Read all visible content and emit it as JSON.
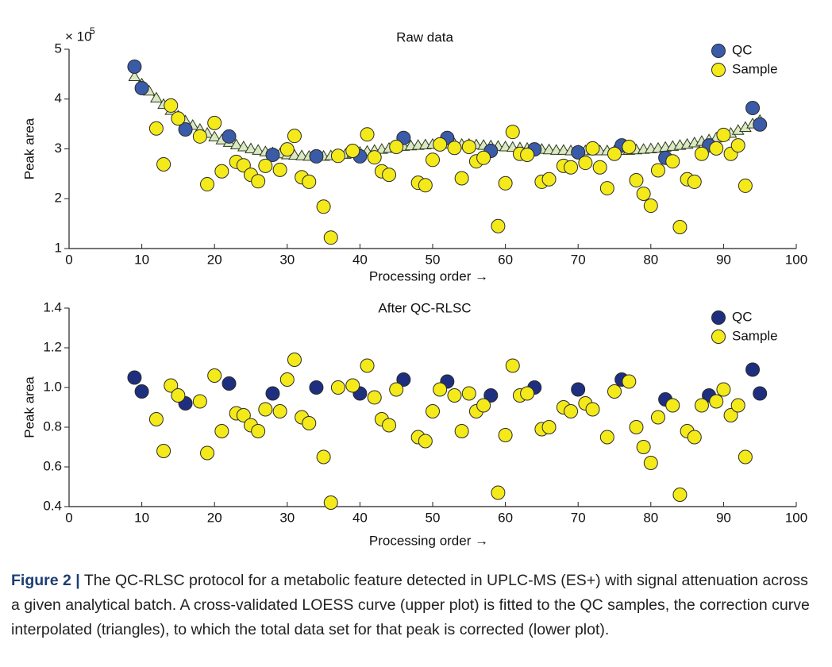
{
  "chart_data": [
    {
      "type": "scatter",
      "title": "Raw data",
      "xlabel": "Processing order →",
      "ylabel": "Peak area",
      "y_multiplier": "× 10",
      "y_multiplier_exponent": "5",
      "xlim": [
        0,
        100
      ],
      "xticks": [
        0,
        10,
        20,
        30,
        40,
        50,
        60,
        70,
        80,
        90,
        100
      ],
      "ylim": [
        1,
        5
      ],
      "yticks": [
        1,
        2,
        3,
        4,
        5
      ],
      "legend": "upper right",
      "series": [
        {
          "marker": "triangle",
          "line": true,
          "color": "#dce8c4",
          "line_color": "#3b5323",
          "x": [
            9,
            10,
            11,
            12,
            13,
            14,
            15,
            16,
            17,
            18,
            19,
            20,
            21,
            22,
            23,
            24,
            25,
            26,
            27,
            28,
            29,
            30,
            31,
            32,
            33,
            34,
            35,
            36,
            37,
            38,
            39,
            40,
            41,
            42,
            43,
            44,
            45,
            46,
            47,
            48,
            49,
            50,
            51,
            52,
            53,
            54,
            55,
            56,
            57,
            58,
            59,
            60,
            61,
            62,
            63,
            64,
            65,
            66,
            67,
            68,
            69,
            70,
            71,
            72,
            73,
            74,
            75,
            76,
            77,
            78,
            79,
            80,
            81,
            82,
            83,
            84,
            85,
            86,
            87,
            88,
            89,
            90,
            91,
            92,
            93,
            94,
            95
          ],
          "values": [
            4.45,
            4.3,
            4.16,
            4.02,
            3.89,
            3.77,
            3.66,
            3.56,
            3.47,
            3.39,
            3.31,
            3.24,
            3.18,
            3.13,
            3.08,
            3.04,
            3.0,
            2.97,
            2.94,
            2.92,
            2.9,
            2.88,
            2.87,
            2.86,
            2.85,
            2.85,
            2.85,
            2.86,
            2.87,
            2.89,
            2.91,
            2.93,
            2.95,
            2.97,
            2.99,
            3.01,
            3.03,
            3.05,
            3.06,
            3.07,
            3.08,
            3.09,
            3.09,
            3.1,
            3.1,
            3.09,
            3.09,
            3.08,
            3.07,
            3.06,
            3.05,
            3.04,
            3.03,
            3.02,
            3.01,
            3.0,
            2.99,
            2.98,
            2.97,
            2.97,
            2.96,
            2.96,
            2.96,
            2.96,
            2.96,
            2.96,
            2.96,
            2.97,
            2.97,
            2.98,
            2.99,
            3.0,
            3.01,
            3.03,
            3.05,
            3.07,
            3.09,
            3.12,
            3.15,
            3.18,
            3.22,
            3.26,
            3.31,
            3.37,
            3.43,
            3.5,
            3.57
          ]
        },
        {
          "name": "QC",
          "marker": "circle",
          "color": "#3a5ba8",
          "x": [
            9,
            10,
            16,
            22,
            28,
            34,
            40,
            46,
            52,
            58,
            64,
            70,
            76,
            82,
            88,
            94,
            95
          ],
          "values": [
            4.65,
            4.22,
            3.39,
            3.25,
            2.88,
            2.85,
            2.85,
            3.22,
            3.22,
            2.96,
            2.99,
            2.93,
            3.07,
            2.82,
            3.07,
            3.82,
            3.49
          ]
        },
        {
          "name": "Sample",
          "marker": "circle",
          "color": "#f4ea1a",
          "x": [
            12,
            13,
            14,
            15,
            18,
            19,
            20,
            21,
            23,
            24,
            25,
            26,
            27,
            29,
            30,
            31,
            32,
            33,
            35,
            36,
            37,
            39,
            41,
            42,
            43,
            44,
            45,
            48,
            49,
            50,
            51,
            53,
            54,
            55,
            56,
            57,
            59,
            60,
            61,
            62,
            63,
            65,
            66,
            68,
            69,
            71,
            72,
            73,
            74,
            75,
            77,
            78,
            79,
            80,
            81,
            83,
            84,
            85,
            86,
            87,
            89,
            90,
            91,
            92,
            93
          ],
          "values": [
            3.41,
            2.69,
            3.87,
            3.61,
            3.25,
            2.29,
            3.52,
            2.55,
            2.74,
            2.67,
            2.48,
            2.35,
            2.66,
            2.58,
            2.99,
            3.26,
            2.43,
            2.34,
            1.84,
            1.22,
            2.86,
            2.96,
            3.29,
            2.83,
            2.55,
            2.48,
            3.04,
            2.32,
            2.27,
            2.78,
            3.09,
            3.02,
            2.41,
            3.04,
            2.75,
            2.82,
            1.45,
            2.31,
            3.34,
            2.9,
            2.88,
            2.34,
            2.39,
            2.66,
            2.63,
            2.72,
            3.01,
            2.63,
            2.21,
            2.9,
            3.04,
            2.37,
            2.1,
            1.86,
            2.57,
            2.75,
            1.43,
            2.39,
            2.34,
            2.9,
            3.01,
            3.28,
            2.9,
            3.07,
            2.26
          ]
        }
      ]
    },
    {
      "type": "scatter",
      "title": "After QC-RLSC",
      "xlabel": "Processing order →",
      "ylabel": "Peak area",
      "xlim": [
        0,
        100
      ],
      "xticks": [
        0,
        10,
        20,
        30,
        40,
        50,
        60,
        70,
        80,
        90,
        100
      ],
      "ylim": [
        0.4,
        1.4
      ],
      "yticks": [
        0.4,
        0.6,
        0.8,
        {
          "value": 1,
          "label": "1.0"
        },
        1.2,
        1.4
      ],
      "legend": "upper right",
      "series": [
        {
          "name": "QC",
          "marker": "circle",
          "color": "#1f2f80",
          "x": [
            9,
            10,
            16,
            22,
            28,
            34,
            40,
            46,
            52,
            58,
            64,
            70,
            76,
            82,
            88,
            94,
            95
          ],
          "values": [
            1.05,
            0.98,
            0.92,
            1.02,
            0.97,
            1.0,
            0.97,
            1.04,
            1.03,
            0.96,
            1.0,
            0.99,
            1.04,
            0.94,
            0.96,
            1.09,
            0.97
          ]
        },
        {
          "name": "Sample",
          "marker": "circle",
          "color": "#f4ea1a",
          "x": [
            12,
            13,
            14,
            15,
            18,
            19,
            20,
            21,
            23,
            24,
            25,
            26,
            27,
            29,
            30,
            31,
            32,
            33,
            35,
            36,
            37,
            39,
            41,
            42,
            43,
            44,
            45,
            48,
            49,
            50,
            51,
            53,
            54,
            55,
            56,
            57,
            59,
            60,
            61,
            62,
            63,
            65,
            66,
            68,
            69,
            71,
            72,
            74,
            75,
            77,
            78,
            79,
            80,
            81,
            83,
            84,
            85,
            86,
            87,
            89,
            90,
            91,
            92,
            93
          ],
          "values": [
            0.84,
            0.68,
            1.01,
            0.96,
            0.93,
            0.67,
            1.06,
            0.78,
            0.87,
            0.86,
            0.81,
            0.78,
            0.89,
            0.88,
            1.04,
            1.14,
            0.85,
            0.82,
            0.65,
            0.42,
            1.0,
            1.01,
            1.11,
            0.95,
            0.84,
            0.81,
            0.99,
            0.75,
            0.73,
            0.88,
            0.99,
            0.96,
            0.78,
            0.97,
            0.88,
            0.91,
            0.47,
            0.76,
            1.11,
            0.96,
            0.97,
            0.79,
            0.8,
            0.9,
            0.88,
            0.92,
            0.89,
            0.75,
            0.98,
            1.03,
            0.8,
            0.7,
            0.62,
            0.85,
            0.91,
            0.46,
            0.78,
            0.75,
            0.91,
            0.93,
            0.99,
            0.86,
            0.91,
            0.65
          ]
        }
      ]
    }
  ],
  "caption": {
    "label": "Figure 2 |",
    "text": "The QC-RLSC protocol for a metabolic feature detected in UPLC-MS (ES+) with signal attenuation across a given analytical batch. A cross-validated LOESS curve (upper plot) is fitted to the QC samples, the correction curve interpolated (triangles), to which the total data set for that peak is corrected (lower plot)."
  }
}
